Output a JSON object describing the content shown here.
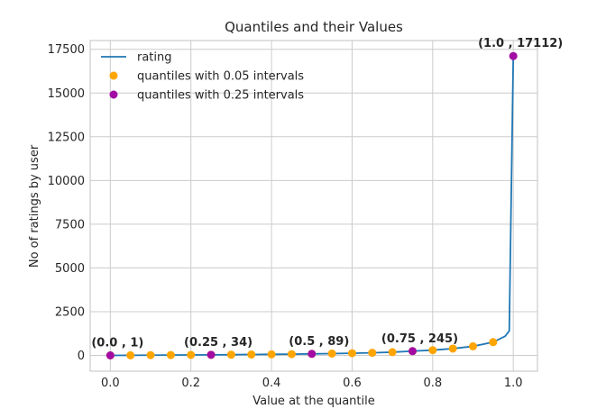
{
  "chart_data": {
    "type": "scatter",
    "title": "Quantiles and their Values",
    "xlabel": "Value at the quantile",
    "ylabel": "No of ratings by user",
    "xlim": [
      -0.05,
      1.06
    ],
    "ylim": [
      -900,
      18000
    ],
    "grid": true,
    "legend_position": "top-left",
    "x_ticks": [
      0.0,
      0.2,
      0.4,
      0.6,
      0.8,
      1.0
    ],
    "x_tick_labels": [
      "0.0",
      "0.2",
      "0.4",
      "0.6",
      "0.8",
      "1.0"
    ],
    "y_ticks": [
      0,
      2500,
      5000,
      7500,
      10000,
      12500,
      15000,
      17500
    ],
    "y_tick_labels": [
      "0",
      "2500",
      "5000",
      "7500",
      "10000",
      "12500",
      "15000",
      "17500"
    ],
    "series": [
      {
        "name": "rating",
        "kind": "line",
        "color": "#1f77b4",
        "x": [
          0.0,
          0.05,
          0.1,
          0.15,
          0.2,
          0.25,
          0.3,
          0.35,
          0.4,
          0.45,
          0.5,
          0.55,
          0.6,
          0.65,
          0.7,
          0.75,
          0.8,
          0.85,
          0.9,
          0.95,
          0.98,
          0.99,
          1.0
        ],
        "y": [
          1,
          7,
          15,
          22,
          28,
          34,
          42,
          52,
          62,
          74,
          89,
          105,
          125,
          150,
          185,
          245,
          300,
          390,
          520,
          760,
          1100,
          1400,
          17112
        ]
      },
      {
        "name": "quantiles with 0.05 intervals",
        "kind": "scatter",
        "color": "#ffa500",
        "x": [
          0.0,
          0.05,
          0.1,
          0.15,
          0.2,
          0.25,
          0.3,
          0.35,
          0.4,
          0.45,
          0.5,
          0.55,
          0.6,
          0.65,
          0.7,
          0.75,
          0.8,
          0.85,
          0.9,
          0.95
        ],
        "y": [
          1,
          7,
          15,
          22,
          28,
          34,
          42,
          52,
          62,
          74,
          89,
          105,
          125,
          150,
          185,
          245,
          300,
          390,
          520,
          760
        ]
      },
      {
        "name": "quantiles with 0.25 intervals",
        "kind": "scatter",
        "color": "#a30ca3",
        "x": [
          0.0,
          0.25,
          0.5,
          0.75,
          1.0
        ],
        "y": [
          1,
          34,
          89,
          245,
          17112
        ]
      }
    ],
    "annotations": [
      {
        "text": "(0.0 , 1)",
        "x": 0.0,
        "y": 1
      },
      {
        "text": "(0.25 , 34)",
        "x": 0.25,
        "y": 34
      },
      {
        "text": "(0.5 , 89)",
        "x": 0.5,
        "y": 89
      },
      {
        "text": "(0.75 , 245)",
        "x": 0.75,
        "y": 245
      },
      {
        "text": "(1.0 , 17112)",
        "x": 1.0,
        "y": 17112
      }
    ]
  }
}
